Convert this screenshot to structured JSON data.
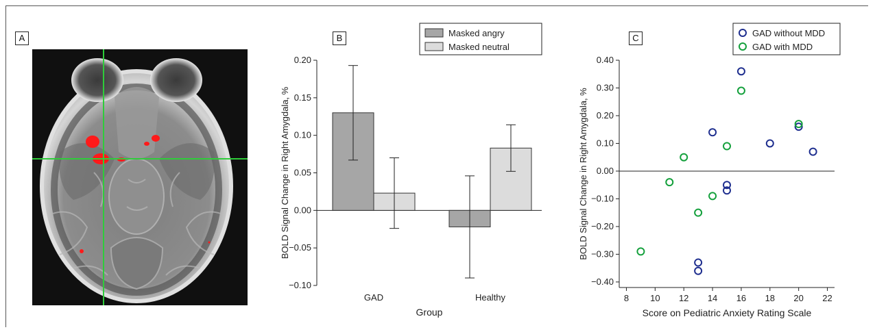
{
  "panels": {
    "a": {
      "label": "A"
    },
    "b": {
      "label": "B"
    },
    "c": {
      "label": "C"
    }
  },
  "chart_data": [
    {
      "type": "bar",
      "panel": "B",
      "xlabel": "Group",
      "ylabel": "BOLD Signal Change in Right Amygdala, %",
      "categories": [
        "GAD",
        "Healthy"
      ],
      "series": [
        {
          "name": "Masked angry",
          "color": "#a6a6a6",
          "values": [
            0.13,
            -0.022
          ],
          "error": [
            0.063,
            0.068
          ]
        },
        {
          "name": "Masked neutral",
          "color": "#dcdcdc",
          "values": [
            0.023,
            0.083
          ],
          "error": [
            0.047,
            0.031
          ]
        }
      ],
      "ylim": [
        -0.1,
        0.2
      ],
      "yticks": [
        "0.20",
        "0.15",
        "0.10",
        "0.05",
        "0.00",
        "−0.05",
        "−0.10"
      ],
      "legend": "top-right"
    },
    {
      "type": "scatter",
      "panel": "C",
      "xlabel": "Score on Pediatric Anxiety Rating Scale",
      "ylabel": "BOLD Signal Change in Right Amygdala, %",
      "xlim": [
        7.5,
        22.5
      ],
      "ylim": [
        -0.42,
        0.4
      ],
      "xticks": [
        "8",
        "10",
        "12",
        "14",
        "16",
        "18",
        "20",
        "22"
      ],
      "yticks": [
        "0.40",
        "0.30",
        "0.20",
        "0.10",
        "0.00",
        "−0.10",
        "−0.20",
        "−0.30",
        "−0.40"
      ],
      "series": [
        {
          "name": "GAD without MDD",
          "color": "#1f2f8f",
          "x": [
            16,
            14,
            18,
            20,
            21,
            15,
            15,
            13,
            13
          ],
          "y": [
            0.36,
            0.14,
            0.1,
            0.16,
            0.07,
            -0.05,
            -0.07,
            -0.33,
            -0.36
          ]
        },
        {
          "name": "GAD with MDD",
          "color": "#14a03c",
          "x": [
            16,
            20,
            15,
            12,
            11,
            14,
            13,
            9
          ],
          "y": [
            0.29,
            0.17,
            0.09,
            0.05,
            -0.04,
            -0.09,
            -0.15,
            -0.29
          ]
        }
      ],
      "legend": "top-right"
    }
  ]
}
